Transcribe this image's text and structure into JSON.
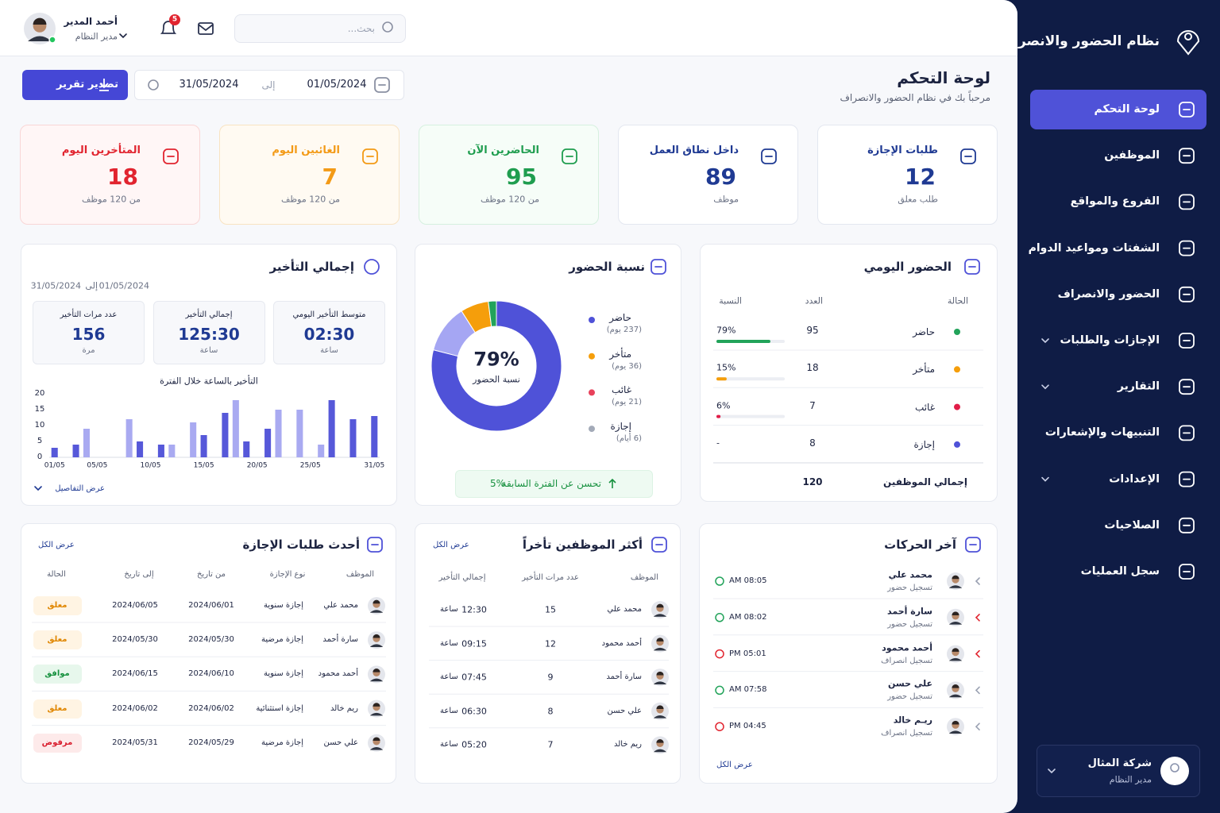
{
  "sidebar": {
    "title": "نظام الحضور والانصراف",
    "nav": [
      {
        "label": "لوحة التحكم",
        "active": true
      },
      {
        "label": "الموظفين"
      },
      {
        "label": "الفروع والمواقع"
      },
      {
        "label": "الشفتات ومواعيد الدوام"
      },
      {
        "label": "الحضور والانصراف"
      },
      {
        "label": "الإجازات والطلبات",
        "expandable": true
      },
      {
        "label": "التقارير",
        "expandable": true
      },
      {
        "label": "التنبيهات والإشعارات"
      },
      {
        "label": "الإعدادات",
        "expandable": true
      },
      {
        "label": "الصلاحيات"
      },
      {
        "label": "سجل العمليات"
      }
    ],
    "company": {
      "name": "شركة المثال",
      "role": "مدير النظام"
    }
  },
  "header": {
    "user_name": "أحمد المدير",
    "user_role": "مدير النظام",
    "notifications": 5,
    "search_placeholder": "بحث..."
  },
  "page": {
    "title": "لوحة التحكم",
    "subtitle": "مرحباً بك في نظام الحضور والانصراف",
    "date_from": "01/05/2024",
    "to": "إلى",
    "date_to": "31/05/2024",
    "export": "تصدير تقرير"
  },
  "stats": [
    {
      "label": "طلبات الإجازة",
      "value": 12,
      "sub": "طلب معلق",
      "color": "#1f3a93",
      "bg": "#ffffff",
      "border": "#e3e7f0"
    },
    {
      "label": "داخل نطاق العمل",
      "value": 89,
      "sub": "موظف",
      "color": "#1f3a93",
      "bg": "#ffffff",
      "border": "#e3e7f0"
    },
    {
      "label": "الحاضرين الآن",
      "value": 95,
      "sub": "من 120 موظف",
      "color": "#1f9d4f",
      "bg": "#f6fdf8",
      "border": "#d6f0df"
    },
    {
      "label": "الغائبين اليوم",
      "value": 7,
      "sub": "من 120 موظف",
      "color": "#f39a16",
      "bg": "#fffaf2",
      "border": "#f8e3c2"
    },
    {
      "label": "المتأخرين اليوم",
      "value": 18,
      "sub": "من 120 موظف",
      "color": "#e1242f",
      "bg": "#fff6f6",
      "border": "#f9d6d6"
    }
  ],
  "daily": {
    "title": "الحضور اليومي",
    "columns": [
      "الحالة",
      "العدد",
      "النسبة"
    ],
    "rows": [
      {
        "status": "حاضر",
        "count": 95,
        "percent": 79,
        "percent_label": "79%",
        "color": "#22a35a"
      },
      {
        "status": "متأخر",
        "count": 18,
        "percent": 15,
        "percent_label": "15%",
        "color": "#f59e0b"
      },
      {
        "status": "غائب",
        "count": 7,
        "percent": 6,
        "percent_label": "6%",
        "color": "#e11d48"
      },
      {
        "status": "إجازة",
        "count": 8,
        "percent": null,
        "percent_label": "-",
        "color": "#4f52d8"
      }
    ],
    "total_label": "إجمالي الموظفين",
    "total": 120
  },
  "ratio": {
    "title": "نسبة الحضور",
    "center_value": "79%",
    "center_label": "نسبة الحضور",
    "items": [
      {
        "name": "حاضر",
        "detail": "(237 يوم)",
        "days": 237,
        "color": "#4f52d8",
        "segment_color": "#4f52d8"
      },
      {
        "name": "متأخر",
        "detail": "(36 يوم)",
        "days": 36,
        "color": "#f59e0b",
        "segment_color": "#a5a6f3"
      },
      {
        "name": "غائب",
        "detail": "(21 يوم)",
        "days": 21,
        "color": "#e8415b",
        "segment_color": "#f59e0b"
      },
      {
        "name": "إجازة",
        "detail": "(6 أيام)",
        "days": 6,
        "color": "#a3aab8",
        "segment_color": "#22a35a"
      }
    ],
    "note": "تحسن عن الفترة السابقة",
    "note_value": "5%"
  },
  "delay": {
    "title": "إجمالي التأخير",
    "period_from": "01/05/2024",
    "to": "إلى",
    "period_to": "31/05/2024",
    "kpis": [
      {
        "label": "متوسط التأخير اليومي",
        "value": "02:30",
        "unit": "ساعة"
      },
      {
        "label": "إجمالي التأخير",
        "value": "125:30",
        "unit": "ساعة"
      },
      {
        "label": "عدد مرات التأخير",
        "value": 156,
        "unit": "مرة"
      }
    ],
    "chart": {
      "type": "bar",
      "title": "التأخير بالساعة خلال الفترة",
      "categories": [
        "01/05",
        null,
        null,
        null,
        "05/05",
        null,
        null,
        null,
        null,
        "10/05",
        null,
        null,
        null,
        null,
        "15/05",
        null,
        null,
        null,
        null,
        "20/05",
        null,
        null,
        null,
        null,
        "25/05",
        null,
        null,
        null,
        null,
        null,
        "31/05"
      ],
      "values": [
        3,
        0,
        4,
        9,
        0,
        0,
        0,
        12,
        5,
        0,
        4,
        4,
        0,
        11,
        7,
        0,
        14,
        18,
        5,
        0,
        9,
        15,
        0,
        15,
        0,
        4,
        18,
        0,
        12,
        0,
        13
      ],
      "color": "#5658d9",
      "alt_color": "#a9aaf1",
      "ylim": [
        0,
        20
      ],
      "yticks": [
        0,
        5,
        10,
        15,
        20
      ],
      "grid": false
    },
    "details": "عرض التفاصيل"
  },
  "late_employees": {
    "title": "أكثر الموظفين تأخراً",
    "view_all": "عرض الكل",
    "columns": [
      "الموظف",
      "عدد مرات التأخير",
      "إجمالي التأخير"
    ],
    "rows": [
      {
        "name": "محمد علي",
        "count": 15,
        "total": "12:30",
        "unit": "ساعة"
      },
      {
        "name": "أحمد محمود",
        "count": 12,
        "total": "09:15",
        "unit": "ساعة"
      },
      {
        "name": "سارة أحمد",
        "count": 9,
        "total": "07:45",
        "unit": "ساعة"
      },
      {
        "name": "علي حسن",
        "count": 8,
        "total": "06:30",
        "unit": "ساعة"
      },
      {
        "name": "ريم خالد",
        "count": 7,
        "total": "05:20",
        "unit": "ساعة"
      }
    ]
  },
  "leave_requests": {
    "title": "أحدث طلبات الإجازة",
    "view_all": "عرض الكل",
    "columns": [
      "الموظف",
      "نوع الإجازة",
      "من تاريخ",
      "إلى تاريخ",
      "الحالة"
    ],
    "rows": [
      {
        "name": "محمد علي",
        "type": "إجازة سنوية",
        "from": "2024/06/01",
        "to": "2024/06/05",
        "status": "معلق",
        "status_color": "#e08600",
        "status_bg": "#fff4e3"
      },
      {
        "name": "سارة أحمد",
        "type": "إجازة مرضية",
        "from": "2024/05/30",
        "to": "2024/05/30",
        "status": "معلق",
        "status_color": "#e08600",
        "status_bg": "#fff4e3"
      },
      {
        "name": "أحمد محمود",
        "type": "إجازة سنوية",
        "from": "2024/06/10",
        "to": "2024/06/15",
        "status": "موافق",
        "status_color": "#17913f",
        "status_bg": "#e7f7ec"
      },
      {
        "name": "ريم خالد",
        "type": "إجازة استثنائية",
        "from": "2024/06/02",
        "to": "2024/06/02",
        "status": "معلق",
        "status_color": "#e08600",
        "status_bg": "#fff4e3"
      },
      {
        "name": "علي حسن",
        "type": "إجازة مرضية",
        "from": "2024/05/29",
        "to": "2024/05/31",
        "status": "مرفوض",
        "status_color": "#d91e2e",
        "status_bg": "#fdeaea"
      }
    ]
  },
  "movements": {
    "title": "آخر الحركات",
    "view_all": "عرض الكل",
    "rows": [
      {
        "name": "محمد علي",
        "action": "تسجيل حضور",
        "time": "08:05 AM",
        "color": "#22a35a"
      },
      {
        "name": "سارة أحمد",
        "action": "تسجيل حضور",
        "time": "08:02 AM",
        "color": "#22a35a"
      },
      {
        "name": "أحمد محمود",
        "action": "تسجيل انصراف",
        "time": "05:01 PM",
        "color": "#e1242f"
      },
      {
        "name": "علي حسن",
        "action": "تسجيل حضور",
        "time": "07:58 AM",
        "color": "#22a35a"
      },
      {
        "name": "ريـم خالد",
        "action": "تسجيل انصراف",
        "time": "04:45 PM",
        "color": "#e1242f"
      }
    ]
  }
}
